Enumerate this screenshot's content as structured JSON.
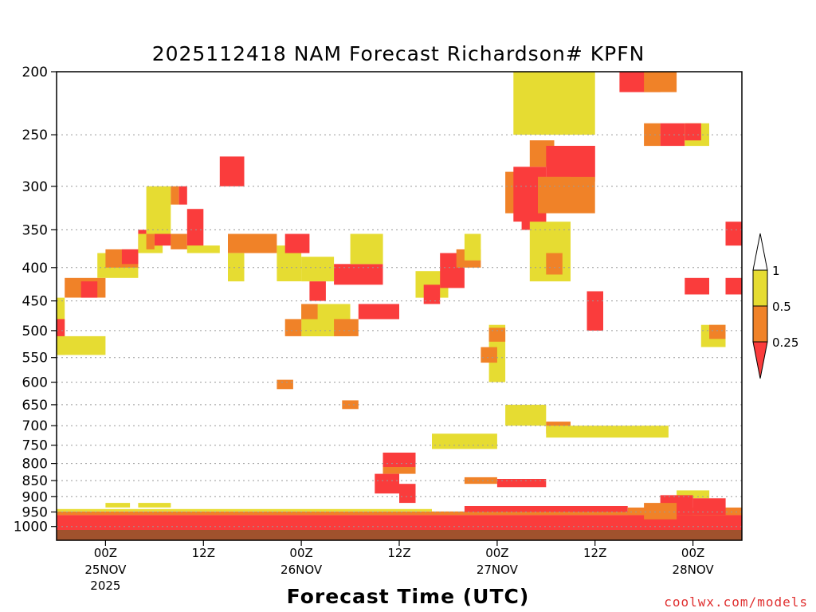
{
  "chart_data": {
    "type": "heatmap",
    "title": "2025112418 NAM Forecast Richardson# KPFN",
    "xlabel": "Forecast Time (UTC)",
    "ylabel": "",
    "y_axis": {
      "scale": "log",
      "reversed": true,
      "range": [
        1050,
        200
      ],
      "ticks": [
        200,
        250,
        300,
        350,
        400,
        450,
        500,
        550,
        600,
        650,
        700,
        750,
        800,
        850,
        900,
        950,
        1000
      ],
      "gridlines": "dotted"
    },
    "x_axis": {
      "range_hours": [
        0,
        84
      ],
      "ticks": [
        {
          "hour": 6,
          "label": "00Z",
          "date": "25NOV",
          "year": "2025"
        },
        {
          "hour": 18,
          "label": "12Z",
          "date": "",
          "year": ""
        },
        {
          "hour": 30,
          "label": "00Z",
          "date": "26NOV",
          "year": ""
        },
        {
          "hour": 42,
          "label": "12Z",
          "date": "",
          "year": ""
        },
        {
          "hour": 54,
          "label": "00Z",
          "date": "27NOV",
          "year": ""
        },
        {
          "hour": 66,
          "label": "12Z",
          "date": "",
          "year": ""
        },
        {
          "hour": 78,
          "label": "00Z",
          "date": "28NOV",
          "year": ""
        }
      ]
    },
    "legend": {
      "placement": "right",
      "labels": [
        "1",
        "0.5",
        "0.25"
      ],
      "bins": [
        {
          "range": "> 1",
          "color": "#ffffff"
        },
        {
          "range": "0.5 - 1",
          "color": "#e6dc32"
        },
        {
          "range": "0.25 - 0.5",
          "color": "#f08228"
        },
        {
          "range": "< 0.25",
          "color": "#fa3c3c"
        }
      ]
    },
    "colors": {
      "low": "#fa3c3c",
      "mid": "#f08228",
      "high": "#e6dc32",
      "ground": "#a0522d"
    },
    "cells": [
      {
        "t": [
          0,
          1
        ],
        "p": [
          445,
          545
        ],
        "c": "high"
      },
      {
        "t": [
          0,
          6
        ],
        "p": [
          510,
          545
        ],
        "c": "high"
      },
      {
        "t": [
          0,
          1
        ],
        "p": [
          480,
          510
        ],
        "c": "low"
      },
      {
        "t": [
          1,
          6
        ],
        "p": [
          415,
          445
        ],
        "c": "mid"
      },
      {
        "t": [
          3,
          5
        ],
        "p": [
          420,
          445
        ],
        "c": "low"
      },
      {
        "t": [
          5,
          10
        ],
        "p": [
          380,
          415
        ],
        "c": "high"
      },
      {
        "t": [
          6,
          10
        ],
        "p": [
          375,
          400
        ],
        "c": "mid"
      },
      {
        "t": [
          8,
          10
        ],
        "p": [
          375,
          395
        ],
        "c": "low"
      },
      {
        "t": [
          10,
          11
        ],
        "p": [
          350,
          375
        ],
        "c": "low"
      },
      {
        "t": [
          10,
          13
        ],
        "p": [
          355,
          380
        ],
        "c": "high"
      },
      {
        "t": [
          11,
          14
        ],
        "p": [
          300,
          355
        ],
        "c": "high"
      },
      {
        "t": [
          11,
          12
        ],
        "p": [
          355,
          375
        ],
        "c": "mid"
      },
      {
        "t": [
          12,
          14
        ],
        "p": [
          355,
          370
        ],
        "c": "low"
      },
      {
        "t": [
          14,
          16
        ],
        "p": [
          355,
          375
        ],
        "c": "mid"
      },
      {
        "t": [
          14,
          15
        ],
        "p": [
          300,
          320
        ],
        "c": "mid"
      },
      {
        "t": [
          15,
          16
        ],
        "p": [
          300,
          320
        ],
        "c": "low"
      },
      {
        "t": [
          16,
          18
        ],
        "p": [
          325,
          375
        ],
        "c": "low"
      },
      {
        "t": [
          16,
          20
        ],
        "p": [
          370,
          380
        ],
        "c": "high"
      },
      {
        "t": [
          20,
          23
        ],
        "p": [
          270,
          300
        ],
        "c": "low"
      },
      {
        "t": [
          21,
          27
        ],
        "p": [
          355,
          380
        ],
        "c": "mid"
      },
      {
        "t": [
          21,
          23
        ],
        "p": [
          380,
          420
        ],
        "c": "high"
      },
      {
        "t": [
          27,
          30
        ],
        "p": [
          370,
          420
        ],
        "c": "high"
      },
      {
        "t": [
          28,
          31
        ],
        "p": [
          355,
          380
        ],
        "c": "low"
      },
      {
        "t": [
          30,
          34
        ],
        "p": [
          385,
          420
        ],
        "c": "high"
      },
      {
        "t": [
          31,
          33
        ],
        "p": [
          420,
          450
        ],
        "c": "low"
      },
      {
        "t": [
          34,
          40
        ],
        "p": [
          395,
          425
        ],
        "c": "low"
      },
      {
        "t": [
          36,
          40
        ],
        "p": [
          355,
          395
        ],
        "c": "high"
      },
      {
        "t": [
          37,
          42
        ],
        "p": [
          455,
          480
        ],
        "c": "low"
      },
      {
        "t": [
          30,
          36
        ],
        "p": [
          455,
          510
        ],
        "c": "high"
      },
      {
        "t": [
          28,
          30
        ],
        "p": [
          480,
          510
        ],
        "c": "mid"
      },
      {
        "t": [
          30,
          32
        ],
        "p": [
          455,
          480
        ],
        "c": "mid"
      },
      {
        "t": [
          34,
          37
        ],
        "p": [
          480,
          510
        ],
        "c": "mid"
      },
      {
        "t": [
          27,
          29
        ],
        "p": [
          595,
          615
        ],
        "c": "mid"
      },
      {
        "t": [
          35,
          37
        ],
        "p": [
          640,
          660
        ],
        "c": "mid"
      },
      {
        "t": [
          44,
          48
        ],
        "p": [
          405,
          445
        ],
        "c": "high"
      },
      {
        "t": [
          45,
          47
        ],
        "p": [
          425,
          455
        ],
        "c": "low"
      },
      {
        "t": [
          47,
          50
        ],
        "p": [
          380,
          430
        ],
        "c": "low"
      },
      {
        "t": [
          49,
          52
        ],
        "p": [
          375,
          400
        ],
        "c": "mid"
      },
      {
        "t": [
          50,
          52
        ],
        "p": [
          355,
          390
        ],
        "c": "high"
      },
      {
        "t": [
          53,
          55
        ],
        "p": [
          490,
          600
        ],
        "c": "high"
      },
      {
        "t": [
          53,
          55
        ],
        "p": [
          495,
          520
        ],
        "c": "mid"
      },
      {
        "t": [
          52,
          54
        ],
        "p": [
          530,
          560
        ],
        "c": "mid"
      },
      {
        "t": [
          55,
          57
        ],
        "p": [
          285,
          330
        ],
        "c": "mid"
      },
      {
        "t": [
          56,
          60
        ],
        "p": [
          280,
          340
        ],
        "c": "low"
      },
      {
        "t": [
          57,
          60
        ],
        "p": [
          320,
          350
        ],
        "c": "low"
      },
      {
        "t": [
          58,
          61
        ],
        "p": [
          255,
          280
        ],
        "c": "mid"
      },
      {
        "t": [
          60,
          66
        ],
        "p": [
          260,
          295
        ],
        "c": "low"
      },
      {
        "t": [
          59,
          66
        ],
        "p": [
          290,
          330
        ],
        "c": "mid"
      },
      {
        "t": [
          63,
          66
        ],
        "p": [
          260,
          290
        ],
        "c": "low"
      },
      {
        "t": [
          65,
          67
        ],
        "p": [
          435,
          500
        ],
        "c": "low"
      },
      {
        "t": [
          56,
          66
        ],
        "p": [
          200,
          250
        ],
        "c": "high"
      },
      {
        "t": [
          58,
          63
        ],
        "p": [
          340,
          420
        ],
        "c": "high"
      },
      {
        "t": [
          60,
          62
        ],
        "p": [
          380,
          410
        ],
        "c": "mid"
      },
      {
        "t": [
          69,
          74
        ],
        "p": [
          200,
          215
        ],
        "c": "low"
      },
      {
        "t": [
          72,
          76
        ],
        "p": [
          200,
          215
        ],
        "c": "mid"
      },
      {
        "t": [
          74,
          77
        ],
        "p": [
          240,
          260
        ],
        "c": "low"
      },
      {
        "t": [
          72,
          74
        ],
        "p": [
          240,
          260
        ],
        "c": "mid"
      },
      {
        "t": [
          77,
          80
        ],
        "p": [
          240,
          260
        ],
        "c": "high"
      },
      {
        "t": [
          77,
          79
        ],
        "p": [
          240,
          255
        ],
        "c": "low"
      },
      {
        "t": [
          77,
          80
        ],
        "p": [
          415,
          440
        ],
        "c": "low"
      },
      {
        "t": [
          82,
          84
        ],
        "p": [
          415,
          440
        ],
        "c": "low"
      },
      {
        "t": [
          82,
          84
        ],
        "p": [
          340,
          370
        ],
        "c": "low"
      },
      {
        "t": [
          79,
          82
        ],
        "p": [
          490,
          530
        ],
        "c": "high"
      },
      {
        "t": [
          80,
          82
        ],
        "p": [
          490,
          515
        ],
        "c": "mid"
      },
      {
        "t": [
          55,
          60
        ],
        "p": [
          650,
          700
        ],
        "c": "high"
      },
      {
        "t": [
          60,
          63
        ],
        "p": [
          690,
          720
        ],
        "c": "mid"
      },
      {
        "t": [
          60,
          75
        ],
        "p": [
          700,
          730
        ],
        "c": "high"
      },
      {
        "t": [
          46,
          54
        ],
        "p": [
          720,
          760
        ],
        "c": "high"
      },
      {
        "t": [
          6,
          9
        ],
        "p": [
          920,
          935
        ],
        "c": "high"
      },
      {
        "t": [
          10,
          14
        ],
        "p": [
          920,
          935
        ],
        "c": "high"
      },
      {
        "t": [
          40,
          44
        ],
        "p": [
          770,
          820
        ],
        "c": "low"
      },
      {
        "t": [
          40,
          44
        ],
        "p": [
          810,
          830
        ],
        "c": "mid"
      },
      {
        "t": [
          39,
          42
        ],
        "p": [
          830,
          890
        ],
        "c": "low"
      },
      {
        "t": [
          42,
          44
        ],
        "p": [
          860,
          920
        ],
        "c": "low"
      },
      {
        "t": [
          50,
          54
        ],
        "p": [
          840,
          860
        ],
        "c": "mid"
      },
      {
        "t": [
          54,
          60
        ],
        "p": [
          845,
          870
        ],
        "c": "low"
      },
      {
        "t": [
          76,
          80
        ],
        "p": [
          880,
          905
        ],
        "c": "high"
      },
      {
        "t": [
          74,
          78
        ],
        "p": [
          895,
          960
        ],
        "c": "low"
      },
      {
        "t": [
          72,
          76
        ],
        "p": [
          920,
          975
        ],
        "c": "mid"
      },
      {
        "t": [
          78,
          82
        ],
        "p": [
          905,
          960
        ],
        "c": "low"
      }
    ],
    "bands": [
      {
        "t": [
          0,
          84
        ],
        "p": [
          960,
          1030
        ],
        "c": "low"
      },
      {
        "t": [
          0,
          84
        ],
        "p": [
          948,
          960
        ],
        "c": "mid"
      },
      {
        "t": [
          0,
          46
        ],
        "p": [
          940,
          948
        ],
        "c": "high"
      },
      {
        "t": [
          50,
          70
        ],
        "p": [
          930,
          950
        ],
        "c": "low"
      },
      {
        "t": [
          70,
          84
        ],
        "p": [
          935,
          960
        ],
        "c": "mid"
      }
    ]
  },
  "credit": "coolwx.com/models"
}
